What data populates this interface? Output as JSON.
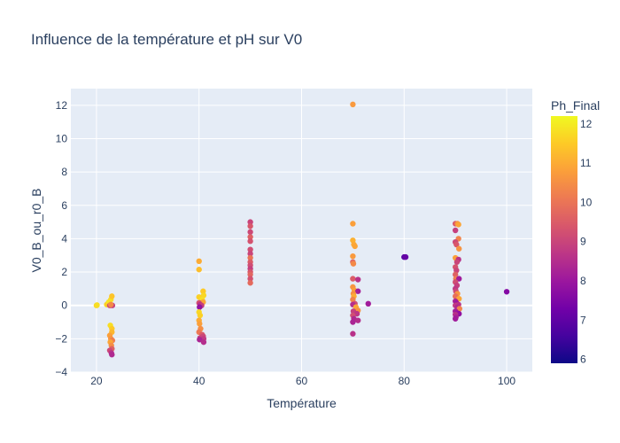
{
  "chart_data": {
    "type": "scatter",
    "title": "Influence de la température et pH sur V0",
    "xlabel": "Température",
    "ylabel": "V0_B_ou_r0_B",
    "xlim": [
      15,
      105
    ],
    "ylim": [
      -4,
      13
    ],
    "x_ticks": [
      20,
      40,
      60,
      80,
      100
    ],
    "y_ticks": [
      -4,
      -2,
      0,
      2,
      4,
      6,
      8,
      10,
      12
    ],
    "grid": true,
    "colorbar": {
      "title": "Ph_Final",
      "range": [
        5.9,
        12.2
      ],
      "ticks": [
        6,
        7,
        8,
        9,
        10,
        11,
        12
      ],
      "colorscale": [
        "#0d0887",
        "#46039f",
        "#7201a8",
        "#9c179e",
        "#bd3786",
        "#d8576b",
        "#ed7953",
        "#fb9f3a",
        "#fdca26",
        "#f0f921"
      ]
    },
    "points": [
      {
        "x": 20,
        "y": 0.0,
        "ph": 11.6
      },
      {
        "x": 20.1,
        "y": 0.02,
        "ph": 11.8
      },
      {
        "x": 22,
        "y": 0.05,
        "ph": 11.7
      },
      {
        "x": 22.2,
        "y": 0.1,
        "ph": 11.5
      },
      {
        "x": 22.4,
        "y": 0.2,
        "ph": 11.9
      },
      {
        "x": 22.8,
        "y": 0.35,
        "ph": 11.8
      },
      {
        "x": 23,
        "y": 0.55,
        "ph": 11.4
      },
      {
        "x": 22.6,
        "y": 0.0,
        "ph": 9.2
      },
      {
        "x": 23.1,
        "y": 0.0,
        "ph": 8.9
      },
      {
        "x": 22.8,
        "y": 0.05,
        "ph": 10.4
      },
      {
        "x": 22.7,
        "y": -1.2,
        "ph": 11.8
      },
      {
        "x": 23,
        "y": -1.4,
        "ph": 11.5
      },
      {
        "x": 23,
        "y": -1.6,
        "ph": 11.2
      },
      {
        "x": 22.6,
        "y": -1.8,
        "ph": 10.8
      },
      {
        "x": 22.8,
        "y": -2.0,
        "ph": 10.6
      },
      {
        "x": 23.1,
        "y": -2.1,
        "ph": 10.2
      },
      {
        "x": 22.7,
        "y": -2.2,
        "ph": 10.9
      },
      {
        "x": 22.9,
        "y": -2.4,
        "ph": 10.5
      },
      {
        "x": 23,
        "y": -2.6,
        "ph": 9.6
      },
      {
        "x": 22.6,
        "y": -2.7,
        "ph": 9.1
      },
      {
        "x": 22.9,
        "y": -2.85,
        "ph": 8.6
      },
      {
        "x": 23,
        "y": -2.95,
        "ph": 8.4
      },
      {
        "x": 40,
        "y": 2.65,
        "ph": 11.0
      },
      {
        "x": 40,
        "y": 2.15,
        "ph": 11.3
      },
      {
        "x": 40.8,
        "y": 0.85,
        "ph": 11.5
      },
      {
        "x": 40.9,
        "y": 0.6,
        "ph": 11.7
      },
      {
        "x": 40,
        "y": 0.5,
        "ph": 11.6
      },
      {
        "x": 40.6,
        "y": 0.35,
        "ph": 11.8
      },
      {
        "x": 40.8,
        "y": 0.2,
        "ph": 10.9
      },
      {
        "x": 40,
        "y": 0.15,
        "ph": 9.3
      },
      {
        "x": 40.2,
        "y": 0.05,
        "ph": 8.6
      },
      {
        "x": 40.5,
        "y": 0.0,
        "ph": 8.9
      },
      {
        "x": 40.1,
        "y": -0.1,
        "ph": 7.9
      },
      {
        "x": 40,
        "y": -0.4,
        "ph": 11.7
      },
      {
        "x": 40.2,
        "y": -0.6,
        "ph": 11.6
      },
      {
        "x": 40,
        "y": -0.9,
        "ph": 11.0
      },
      {
        "x": 40.1,
        "y": -1.1,
        "ph": 10.8
      },
      {
        "x": 40.3,
        "y": -1.4,
        "ph": 10.5
      },
      {
        "x": 40,
        "y": -1.6,
        "ph": 10.1
      },
      {
        "x": 40.6,
        "y": -1.75,
        "ph": 9.5
      },
      {
        "x": 40.8,
        "y": -1.85,
        "ph": 9.1
      },
      {
        "x": 40.2,
        "y": -1.95,
        "ph": 9.0
      },
      {
        "x": 40.9,
        "y": -2.0,
        "ph": 8.8
      },
      {
        "x": 40.1,
        "y": -2.05,
        "ph": 8.3
      },
      {
        "x": 40.9,
        "y": -2.2,
        "ph": 8.5
      },
      {
        "x": 50,
        "y": 5.0,
        "ph": 9.0
      },
      {
        "x": 50,
        "y": 4.75,
        "ph": 9.4
      },
      {
        "x": 50,
        "y": 4.4,
        "ph": 9.1
      },
      {
        "x": 50,
        "y": 4.1,
        "ph": 9.6
      },
      {
        "x": 50,
        "y": 3.85,
        "ph": 9.3
      },
      {
        "x": 50,
        "y": 3.35,
        "ph": 9.2
      },
      {
        "x": 50,
        "y": 3.1,
        "ph": 9.0
      },
      {
        "x": 50,
        "y": 2.85,
        "ph": 10.0
      },
      {
        "x": 50,
        "y": 2.6,
        "ph": 9.5
      },
      {
        "x": 50,
        "y": 2.4,
        "ph": 9.2
      },
      {
        "x": 50,
        "y": 2.2,
        "ph": 8.9
      },
      {
        "x": 50,
        "y": 2.0,
        "ph": 9.4
      },
      {
        "x": 50,
        "y": 1.85,
        "ph": 9.7
      },
      {
        "x": 50,
        "y": 1.6,
        "ph": 9.3
      },
      {
        "x": 50,
        "y": 1.35,
        "ph": 9.8
      },
      {
        "x": 70,
        "y": 12.05,
        "ph": 10.7
      },
      {
        "x": 70,
        "y": 4.9,
        "ph": 10.8
      },
      {
        "x": 70,
        "y": 3.9,
        "ph": 11.1
      },
      {
        "x": 70.2,
        "y": 3.65,
        "ph": 11.0
      },
      {
        "x": 70.4,
        "y": 3.55,
        "ph": 10.9
      },
      {
        "x": 70,
        "y": 2.95,
        "ph": 10.7
      },
      {
        "x": 70,
        "y": 2.6,
        "ph": 9.7
      },
      {
        "x": 70.1,
        "y": 2.5,
        "ph": 10.4
      },
      {
        "x": 70,
        "y": 1.6,
        "ph": 9.5
      },
      {
        "x": 71,
        "y": 1.55,
        "ph": 8.6
      },
      {
        "x": 70,
        "y": 1.1,
        "ph": 10.6
      },
      {
        "x": 70.3,
        "y": 0.9,
        "ph": 10.8
      },
      {
        "x": 71,
        "y": 0.85,
        "ph": 8.2
      },
      {
        "x": 70.1,
        "y": 0.7,
        "ph": 10.5
      },
      {
        "x": 70.2,
        "y": 0.55,
        "ph": 11.0
      },
      {
        "x": 70,
        "y": 0.35,
        "ph": 10.3
      },
      {
        "x": 70.4,
        "y": 0.1,
        "ph": 9.2
      },
      {
        "x": 70,
        "y": 0.05,
        "ph": 8.5
      },
      {
        "x": 73,
        "y": 0.1,
        "ph": 8.1
      },
      {
        "x": 70.6,
        "y": -0.1,
        "ph": 10.9
      },
      {
        "x": 71,
        "y": -0.3,
        "ph": 10.6
      },
      {
        "x": 70.1,
        "y": -0.35,
        "ph": 8.9
      },
      {
        "x": 70.8,
        "y": -0.5,
        "ph": 8.7
      },
      {
        "x": 70,
        "y": -0.6,
        "ph": 9.2
      },
      {
        "x": 70.2,
        "y": -0.8,
        "ph": 8.4
      },
      {
        "x": 71,
        "y": -0.9,
        "ph": 8.5
      },
      {
        "x": 70,
        "y": -1.0,
        "ph": 8.3
      },
      {
        "x": 70,
        "y": -1.7,
        "ph": 8.6
      },
      {
        "x": 80,
        "y": 2.9,
        "ph": 6.9
      },
      {
        "x": 80.3,
        "y": 2.9,
        "ph": 7.1
      },
      {
        "x": 100,
        "y": 0.82,
        "ph": 7.6
      },
      {
        "x": 90,
        "y": 4.9,
        "ph": 9.4
      },
      {
        "x": 90.4,
        "y": 4.9,
        "ph": 10.5
      },
      {
        "x": 90.6,
        "y": 4.85,
        "ph": 10.9
      },
      {
        "x": 90,
        "y": 4.5,
        "ph": 8.9
      },
      {
        "x": 90.6,
        "y": 4.0,
        "ph": 10.3
      },
      {
        "x": 90,
        "y": 3.8,
        "ph": 9.1
      },
      {
        "x": 90.2,
        "y": 3.65,
        "ph": 9.4
      },
      {
        "x": 90.7,
        "y": 3.4,
        "ph": 10.6
      },
      {
        "x": 90,
        "y": 2.85,
        "ph": 10.8
      },
      {
        "x": 90.6,
        "y": 2.75,
        "ph": 8.6
      },
      {
        "x": 90.3,
        "y": 2.6,
        "ph": 9.0
      },
      {
        "x": 90,
        "y": 2.3,
        "ph": 9.3
      },
      {
        "x": 90.2,
        "y": 2.1,
        "ph": 9.0
      },
      {
        "x": 90,
        "y": 1.85,
        "ph": 9.6
      },
      {
        "x": 90.1,
        "y": 1.6,
        "ph": 10.2
      },
      {
        "x": 90.7,
        "y": 1.6,
        "ph": 8.1
      },
      {
        "x": 90,
        "y": 1.4,
        "ph": 9.2
      },
      {
        "x": 90.3,
        "y": 1.2,
        "ph": 8.9
      },
      {
        "x": 90,
        "y": 1.0,
        "ph": 8.7
      },
      {
        "x": 90.1,
        "y": 0.85,
        "ph": 9.1
      },
      {
        "x": 90.4,
        "y": 0.7,
        "ph": 10.6
      },
      {
        "x": 90,
        "y": 0.55,
        "ph": 9.9
      },
      {
        "x": 90.7,
        "y": 0.4,
        "ph": 10.9
      },
      {
        "x": 90,
        "y": 0.25,
        "ph": 8.3
      },
      {
        "x": 90.2,
        "y": 0.15,
        "ph": 8.0
      },
      {
        "x": 90.6,
        "y": 0.05,
        "ph": 8.6
      },
      {
        "x": 90,
        "y": 0.0,
        "ph": 8.8
      },
      {
        "x": 90.4,
        "y": -0.1,
        "ph": 8.4
      },
      {
        "x": 90.8,
        "y": -0.2,
        "ph": 10.3
      },
      {
        "x": 90,
        "y": -0.35,
        "ph": 8.2
      },
      {
        "x": 90.3,
        "y": -0.45,
        "ph": 8.0
      },
      {
        "x": 90.7,
        "y": -0.5,
        "ph": 7.8
      },
      {
        "x": 90,
        "y": -0.55,
        "ph": 8.6
      },
      {
        "x": 90.1,
        "y": -0.7,
        "ph": 8.3
      },
      {
        "x": 90,
        "y": -0.8,
        "ph": 8.1
      }
    ]
  }
}
